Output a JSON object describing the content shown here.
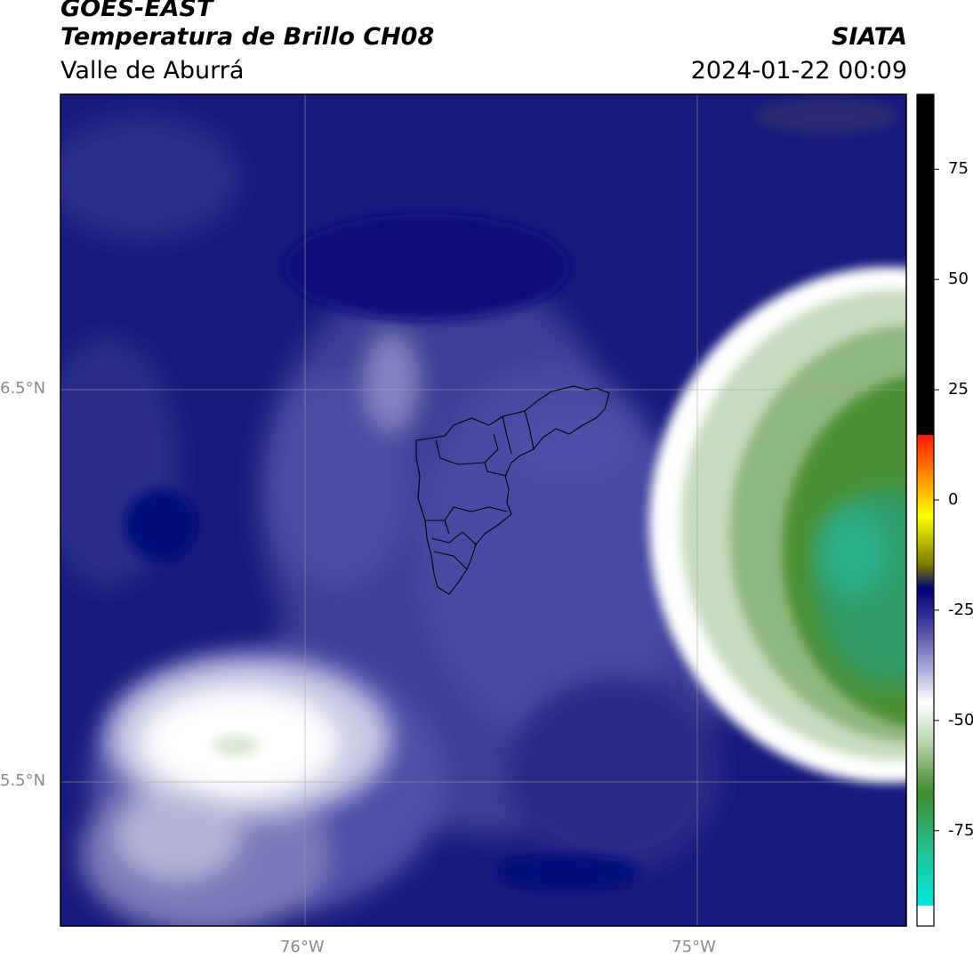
{
  "header": {
    "satellite": "GOES-EAST",
    "product": "Temperatura de Brillo CH08",
    "region": "Valle de Aburrá",
    "organization": "SIATA",
    "datetime": "2024-01-22 00:09"
  },
  "map": {
    "lat_ticks": [
      {
        "value": 6.5,
        "label": "6.5°N"
      },
      {
        "value": 5.5,
        "label": "5.5°N"
      }
    ],
    "lon_ticks": [
      {
        "value": -76.0,
        "label": "76°W"
      },
      {
        "value": -75.0,
        "label": "75°W"
      }
    ],
    "extent": {
      "lon_min": -76.62,
      "lon_max": -74.46,
      "lat_min": 5.13,
      "lat_max": 7.25
    },
    "gridlines": true,
    "features": [
      "brightness-temperature-field",
      "valle-de-aburra-municipality-boundaries"
    ]
  },
  "colorbar": {
    "ticks": [
      {
        "value": 75,
        "label": "75"
      },
      {
        "value": 50,
        "label": "50"
      },
      {
        "value": 25,
        "label": "25"
      },
      {
        "value": 0,
        "label": "0"
      },
      {
        "value": -25,
        "label": "-25"
      },
      {
        "value": -50,
        "label": "-50"
      },
      {
        "value": -75,
        "label": "-75"
      }
    ],
    "range": [
      -92,
      92
    ],
    "colors": {
      "warm": "#000000",
      "red": "#ff1a00",
      "orange": "#ff8c00",
      "yellow": "#ffff00",
      "olive": "#7a7a00",
      "navy": "#00007a",
      "slate": "#6a6ab8",
      "white": "#ffffff",
      "green": "#3f8a2a",
      "teal": "#20c8a0",
      "cyan": "#00e5dc"
    }
  }
}
